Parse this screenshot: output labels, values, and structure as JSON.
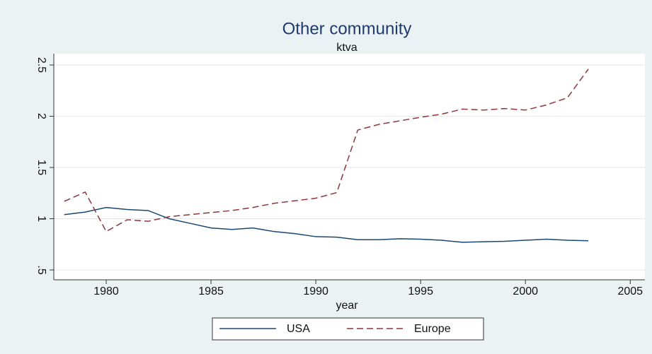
{
  "chart_data": {
    "type": "line",
    "title": "Other community",
    "subtitle": "ktva",
    "x_label": "year",
    "x": [
      1978,
      1979,
      1980,
      1981,
      1982,
      1983,
      1984,
      1985,
      1986,
      1987,
      1988,
      1989,
      1990,
      1991,
      1992,
      1993,
      1994,
      1995,
      1996,
      1997,
      1998,
      1999,
      2000,
      2001,
      2002,
      2003
    ],
    "series": [
      {
        "name": "USA",
        "color": "#1a476f",
        "dash": false,
        "values": [
          1.04,
          1.065,
          1.11,
          1.09,
          1.08,
          1.0,
          0.955,
          0.91,
          0.895,
          0.91,
          0.875,
          0.855,
          0.825,
          0.82,
          0.795,
          0.795,
          0.805,
          0.8,
          0.79,
          0.77,
          0.775,
          0.78,
          0.79,
          0.8,
          0.79,
          0.785
        ]
      },
      {
        "name": "Europe",
        "color": "#90353b",
        "dash": true,
        "values": [
          1.17,
          1.26,
          0.875,
          0.99,
          0.975,
          1.02,
          1.04,
          1.06,
          1.08,
          1.11,
          1.15,
          1.175,
          1.2,
          1.255,
          1.865,
          1.92,
          1.955,
          1.99,
          2.02,
          2.07,
          2.06,
          2.075,
          2.06,
          2.11,
          2.18,
          2.46
        ]
      }
    ],
    "xlim": [
      1977.5,
      2005.7
    ],
    "xticks": [
      1980,
      1985,
      1990,
      1995,
      2000,
      2005
    ],
    "ylim": [
      0.404,
      2.61
    ],
    "yticks": [
      {
        "value": 0.5,
        "label": ".5"
      },
      1,
      1.5,
      2,
      2.5
    ],
    "grid": true,
    "legend": "bottom"
  }
}
